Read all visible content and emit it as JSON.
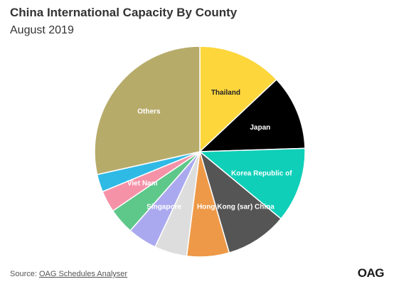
{
  "title": "China International Capacity By County",
  "subtitle": "August 2019",
  "source_prefix": "Source: ",
  "source_link": "OAG Schedules Analyser",
  "logo": "OAG",
  "chart_data": {
    "type": "pie",
    "slices": [
      {
        "label": "Thailand",
        "value": 13.0,
        "color": "#fdd63c",
        "label_color": "#222222"
      },
      {
        "label": "Japan",
        "value": 11.5,
        "color": "#000000",
        "label_color": "#ffffff"
      },
      {
        "label": "Korea Republic of",
        "value": 11.5,
        "color": "#0fcfb8",
        "label_color": "#ffffff"
      },
      {
        "label": "Hong Kong (sar) China",
        "value": 9.5,
        "color": "#555555",
        "label_color": "#ffffff"
      },
      {
        "label": "",
        "value": 6.5,
        "color": "#ee9947",
        "label_color": "#ffffff"
      },
      {
        "label": "",
        "value": 5.0,
        "color": "#dddddd",
        "label_color": "#ffffff"
      },
      {
        "label": "Singapore",
        "value": 4.5,
        "color": "#aaa9ef",
        "label_color": "#ffffff"
      },
      {
        "label": "",
        "value": 4.0,
        "color": "#5ec78a",
        "label_color": "#ffffff"
      },
      {
        "label": "Viet Nam",
        "value": 3.3,
        "color": "#f592a7",
        "label_color": "#ffffff"
      },
      {
        "label": "",
        "value": 2.7,
        "color": "#2fbae6",
        "label_color": "#ffffff"
      },
      {
        "label": "Others",
        "value": 28.5,
        "color": "#b7ab6a",
        "label_color": "#ffffff"
      }
    ]
  }
}
